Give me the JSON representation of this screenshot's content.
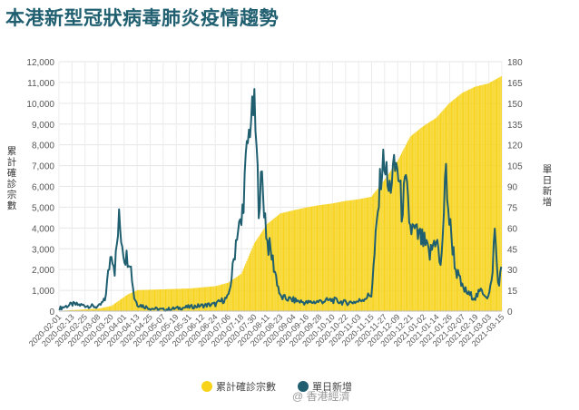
{
  "title": "本港新型冠狀病毒肺炎疫情趨勢",
  "watermark": "@ 香港經濟",
  "chart_data": {
    "type": "bar+line",
    "title": "本港新型冠狀病毒肺炎疫情趨勢",
    "ylabel_left": "累計確診宗數",
    "ylabel_right": "單日新增",
    "ylim_left": [
      0,
      12000
    ],
    "ylim_right": [
      0,
      180
    ],
    "yticks_left": [
      "0",
      "1,000",
      "2,000",
      "3,000",
      "4,000",
      "5,000",
      "6,000",
      "7,000",
      "8,000",
      "9,000",
      "10,000",
      "11,000",
      "12,000"
    ],
    "yticks_right": [
      "0",
      "15",
      "30",
      "45",
      "60",
      "75",
      "90",
      "105",
      "120",
      "135",
      "150",
      "165",
      "180"
    ],
    "xticks": [
      "2020-02-01",
      "2020-02-13",
      "2020-02-25",
      "2020-03-08",
      "2020-03-20",
      "2020-04-01",
      "2020-04-13",
      "2020-04-25",
      "2020-05-07",
      "2020-05-19",
      "2020-05-31",
      "2020-06-12",
      "2020-06-24",
      "2020-07-06",
      "2020-07-18",
      "2020-07-30",
      "2020-08-11",
      "2020-08-23",
      "2020-09-04",
      "2020-09-16",
      "2020-09-28",
      "2020-10-10",
      "2020-10-22",
      "2020-11-03",
      "2020-11-15",
      "2020-11-27",
      "2020-12-09",
      "2020-12-21",
      "2021-01-02",
      "2021-01-14",
      "2021-01-26",
      "2021-02-07",
      "2021-02-19",
      "2021-03-03",
      "2021-03-15"
    ],
    "grid": true,
    "legend_placement": "bottom",
    "series": [
      {
        "name": "累計確診宗數",
        "kind": "bar",
        "axis": "left",
        "color": "#f7d31c",
        "keypoints": [
          [
            "2020-02-01",
            15
          ],
          [
            "2020-03-08",
            120
          ],
          [
            "2020-03-20",
            250
          ],
          [
            "2020-04-04",
            800
          ],
          [
            "2020-04-13",
            1010
          ],
          [
            "2020-05-31",
            1090
          ],
          [
            "2020-06-24",
            1200
          ],
          [
            "2020-07-06",
            1370
          ],
          [
            "2020-07-18",
            1800
          ],
          [
            "2020-07-30",
            3270
          ],
          [
            "2020-08-11",
            4200
          ],
          [
            "2020-08-23",
            4700
          ],
          [
            "2020-09-04",
            4850
          ],
          [
            "2020-09-16",
            4990
          ],
          [
            "2020-09-28",
            5100
          ],
          [
            "2020-10-10",
            5180
          ],
          [
            "2020-10-22",
            5300
          ],
          [
            "2020-11-03",
            5380
          ],
          [
            "2020-11-15",
            5500
          ],
          [
            "2020-11-27",
            6300
          ],
          [
            "2020-12-09",
            7200
          ],
          [
            "2020-12-21",
            8400
          ],
          [
            "2021-01-02",
            8900
          ],
          [
            "2021-01-14",
            9300
          ],
          [
            "2021-01-26",
            10000
          ],
          [
            "2021-02-07",
            10500
          ],
          [
            "2021-02-19",
            10800
          ],
          [
            "2021-03-03",
            10950
          ],
          [
            "2021-03-15",
            11300
          ]
        ]
      },
      {
        "name": "單日新增",
        "kind": "line",
        "axis": "right",
        "color": "#1f5f70",
        "keypoints": [
          [
            "2020-02-01",
            2
          ],
          [
            "2020-02-13",
            5
          ],
          [
            "2020-02-25",
            4
          ],
          [
            "2020-03-08",
            3
          ],
          [
            "2020-03-14",
            8
          ],
          [
            "2020-03-20",
            45
          ],
          [
            "2020-03-23",
            30
          ],
          [
            "2020-03-27",
            65
          ],
          [
            "2020-04-01",
            40
          ],
          [
            "2020-04-06",
            38
          ],
          [
            "2020-04-10",
            10
          ],
          [
            "2020-04-13",
            5
          ],
          [
            "2020-04-25",
            2
          ],
          [
            "2020-05-07",
            1
          ],
          [
            "2020-05-19",
            2
          ],
          [
            "2020-05-31",
            3
          ],
          [
            "2020-06-12",
            4
          ],
          [
            "2020-06-24",
            5
          ],
          [
            "2020-07-06",
            10
          ],
          [
            "2020-07-10",
            30
          ],
          [
            "2020-07-14",
            58
          ],
          [
            "2020-07-18",
            62
          ],
          [
            "2020-07-23",
            115
          ],
          [
            "2020-07-27",
            140
          ],
          [
            "2020-07-30",
            148
          ],
          [
            "2020-08-03",
            80
          ],
          [
            "2020-08-06",
            95
          ],
          [
            "2020-08-11",
            50
          ],
          [
            "2020-08-15",
            40
          ],
          [
            "2020-08-23",
            10
          ],
          [
            "2020-09-04",
            8
          ],
          [
            "2020-09-16",
            6
          ],
          [
            "2020-09-28",
            7
          ],
          [
            "2020-10-10",
            8
          ],
          [
            "2020-10-22",
            6
          ],
          [
            "2020-11-03",
            7
          ],
          [
            "2020-11-15",
            12
          ],
          [
            "2020-11-20",
            60
          ],
          [
            "2020-11-24",
            100
          ],
          [
            "2020-11-27",
            110
          ],
          [
            "2020-12-01",
            85
          ],
          [
            "2020-12-05",
            100
          ],
          [
            "2020-12-09",
            105
          ],
          [
            "2020-12-13",
            75
          ],
          [
            "2020-12-17",
            90
          ],
          [
            "2020-12-21",
            60
          ],
          [
            "2021-01-02",
            50
          ],
          [
            "2021-01-08",
            40
          ],
          [
            "2021-01-14",
            55
          ],
          [
            "2021-01-18",
            30
          ],
          [
            "2021-01-23",
            100
          ],
          [
            "2021-01-26",
            65
          ],
          [
            "2021-02-01",
            30
          ],
          [
            "2021-02-07",
            17
          ],
          [
            "2021-02-13",
            12
          ],
          [
            "2021-02-19",
            10
          ],
          [
            "2021-02-25",
            15
          ],
          [
            "2021-03-03",
            10
          ],
          [
            "2021-03-06",
            20
          ],
          [
            "2021-03-09",
            58
          ],
          [
            "2021-03-12",
            20
          ],
          [
            "2021-03-15",
            28
          ]
        ]
      }
    ]
  }
}
